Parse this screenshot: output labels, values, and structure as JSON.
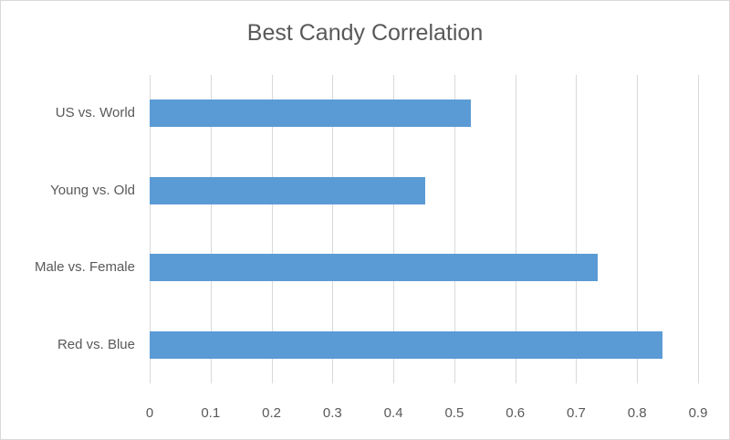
{
  "chart_data": {
    "type": "bar",
    "orientation": "horizontal",
    "title": "Best Candy Correlation",
    "categories": [
      "US vs. World",
      "Young vs. Old",
      "Male vs. Female",
      "Red vs. Blue"
    ],
    "values": [
      0.527,
      0.452,
      0.735,
      0.841
    ],
    "xlabel": "",
    "ylabel": "",
    "xlim": [
      0,
      0.9
    ],
    "xticks": [
      "0",
      "0.1",
      "0.2",
      "0.3",
      "0.4",
      "0.5",
      "0.6",
      "0.7",
      "0.8",
      "0.9"
    ],
    "grid": true,
    "legend": "none",
    "bar_color": "#5b9bd5"
  }
}
